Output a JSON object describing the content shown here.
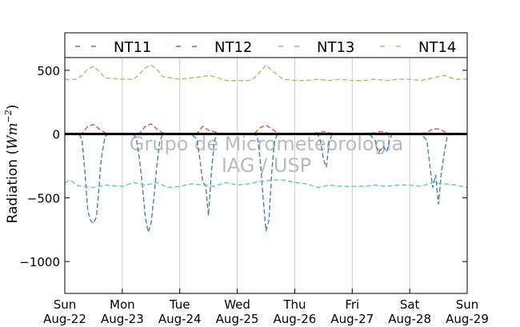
{
  "chart_data": {
    "type": "line",
    "ylabel_prefix": "Radiation (",
    "ylabel_unit": "Wm",
    "ylabel_exp": "−2",
    "ylabel_suffix": ")",
    "ylim": [
      -1250,
      600
    ],
    "yticks": [
      500,
      0,
      -500,
      -1000
    ],
    "ytick_labels": [
      "500",
      "0",
      "−500",
      "−1000"
    ],
    "grid": "vertical",
    "legend_placement": "top",
    "watermark": [
      "Grupo de Micrometeorologia",
      "IAG / USP"
    ],
    "x_ticks": [
      {
        "day": "Sun",
        "date": "Aug-22"
      },
      {
        "day": "Mon",
        "date": "Aug-23"
      },
      {
        "day": "Tue",
        "date": "Aug-24"
      },
      {
        "day": "Wed",
        "date": "Aug-25"
      },
      {
        "day": "Thu",
        "date": "Aug-26"
      },
      {
        "day": "Fri",
        "date": "Aug-27"
      },
      {
        "day": "Sat",
        "date": "Aug-28"
      },
      {
        "day": "Sun",
        "date": "Aug-29"
      }
    ],
    "series": [
      {
        "name": "NT11",
        "color": "#4682b4",
        "x": [
          0,
          0.05,
          0.1,
          0.15,
          0.2,
          0.25,
          0.3,
          0.35,
          0.4,
          0.45,
          0.5,
          0.55,
          0.6,
          0.62,
          0.65,
          0.7,
          0.75,
          0.8,
          0.85,
          0.9,
          1.0,
          1.2,
          1.25,
          1.3,
          1.35,
          1.4,
          1.45,
          1.5,
          1.55,
          1.6,
          1.65,
          1.7,
          1.8,
          1.9,
          2.0,
          2.2,
          2.3,
          2.35,
          2.4,
          2.45,
          2.5,
          2.55,
          2.6,
          2.65,
          2.7,
          2.8,
          2.9,
          3.0,
          3.3,
          3.35,
          3.4,
          3.45,
          3.5,
          3.55,
          3.6,
          3.65,
          3.7,
          3.8,
          3.9,
          4.0,
          4.4,
          4.45,
          4.5,
          4.55,
          4.6,
          4.65,
          4.7,
          4.8,
          4.9,
          5.0,
          5.3,
          5.4,
          5.45,
          5.5,
          5.55,
          5.6,
          5.65,
          5.7,
          5.8,
          5.9,
          6.0,
          6.2,
          6.3,
          6.35,
          6.4,
          6.45,
          6.5,
          6.55,
          6.6,
          6.65,
          6.7,
          6.8,
          7.0
        ],
        "y": [
          0,
          0,
          0,
          0,
          0,
          0,
          -50,
          -300,
          -600,
          -680,
          -700,
          -650,
          -400,
          -250,
          -150,
          -20,
          0,
          0,
          0,
          0,
          0,
          0,
          -50,
          -200,
          -400,
          -650,
          -770,
          -700,
          -500,
          -250,
          -60,
          0,
          0,
          0,
          0,
          0,
          -40,
          -200,
          -380,
          -400,
          -640,
          -300,
          -60,
          0,
          0,
          0,
          0,
          0,
          0,
          -20,
          -200,
          -500,
          -760,
          -680,
          -300,
          -50,
          0,
          0,
          0,
          0,
          0,
          -60,
          -200,
          -260,
          -60,
          0,
          0,
          0,
          0,
          0,
          0,
          -50,
          -150,
          -120,
          -100,
          -140,
          -40,
          0,
          0,
          0,
          0,
          0,
          -50,
          -250,
          -420,
          -320,
          -550,
          -300,
          -150,
          -20,
          0,
          0,
          0
        ]
      },
      {
        "name": "NT12",
        "color": "#d9534f",
        "x": [
          0,
          0.3,
          0.4,
          0.5,
          0.6,
          0.7,
          0.8,
          1.0,
          1.3,
          1.4,
          1.5,
          1.6,
          1.7,
          1.8,
          2.0,
          2.3,
          2.4,
          2.5,
          2.6,
          2.7,
          3.0,
          3.3,
          3.4,
          3.5,
          3.6,
          3.7,
          3.8,
          4.0,
          4.4,
          4.5,
          4.6,
          4.7,
          5.0,
          5.4,
          5.5,
          5.6,
          5.7,
          6.0,
          6.3,
          6.4,
          6.5,
          6.6,
          6.7,
          7.0
        ],
        "y": [
          0,
          5,
          60,
          75,
          40,
          10,
          0,
          0,
          5,
          60,
          80,
          40,
          10,
          0,
          0,
          5,
          60,
          30,
          20,
          0,
          0,
          5,
          50,
          70,
          40,
          10,
          0,
          0,
          10,
          20,
          10,
          0,
          0,
          10,
          20,
          10,
          0,
          0,
          10,
          40,
          40,
          20,
          0,
          0
        ]
      },
      {
        "name": "NT13",
        "color": "#66cdaa",
        "x": [
          0,
          0.1,
          0.2,
          0.3,
          0.5,
          0.7,
          1.0,
          1.2,
          1.4,
          1.6,
          1.8,
          2.0,
          2.2,
          2.4,
          2.6,
          2.8,
          3.0,
          3.2,
          3.4,
          3.6,
          3.8,
          4.0,
          4.2,
          4.4,
          4.6,
          4.8,
          5.0,
          5.2,
          5.4,
          5.6,
          5.8,
          6.0,
          6.2,
          6.4,
          6.6,
          6.8,
          7.0
        ],
        "y": [
          -380,
          -360,
          -400,
          -410,
          -420,
          -400,
          -410,
          -380,
          -400,
          -380,
          -420,
          -410,
          -390,
          -400,
          -410,
          -380,
          -400,
          -390,
          -370,
          -360,
          -360,
          -380,
          -390,
          -420,
          -400,
          -410,
          -410,
          -410,
          -400,
          -410,
          -400,
          -400,
          -410,
          -380,
          -390,
          -400,
          -420
        ]
      },
      {
        "name": "NT14",
        "color": "#bdb76b",
        "x": [
          0,
          0.1,
          0.2,
          0.3,
          0.4,
          0.5,
          0.6,
          0.7,
          1.0,
          1.2,
          1.3,
          1.4,
          1.5,
          1.6,
          1.7,
          2.0,
          2.2,
          2.4,
          2.5,
          2.6,
          2.8,
          3.0,
          3.2,
          3.3,
          3.4,
          3.5,
          3.6,
          3.8,
          4.0,
          4.2,
          4.4,
          4.6,
          4.8,
          5.0,
          5.2,
          5.4,
          5.6,
          5.8,
          6.0,
          6.2,
          6.4,
          6.5,
          6.6,
          6.8,
          7.0
        ],
        "y": [
          430,
          425,
          430,
          460,
          510,
          530,
          490,
          440,
          430,
          430,
          470,
          520,
          540,
          510,
          450,
          430,
          440,
          450,
          460,
          450,
          420,
          420,
          420,
          440,
          490,
          540,
          500,
          430,
          420,
          420,
          430,
          420,
          430,
          420,
          420,
          430,
          420,
          430,
          430,
          420,
          440,
          450,
          460,
          430,
          430
        ]
      }
    ]
  }
}
